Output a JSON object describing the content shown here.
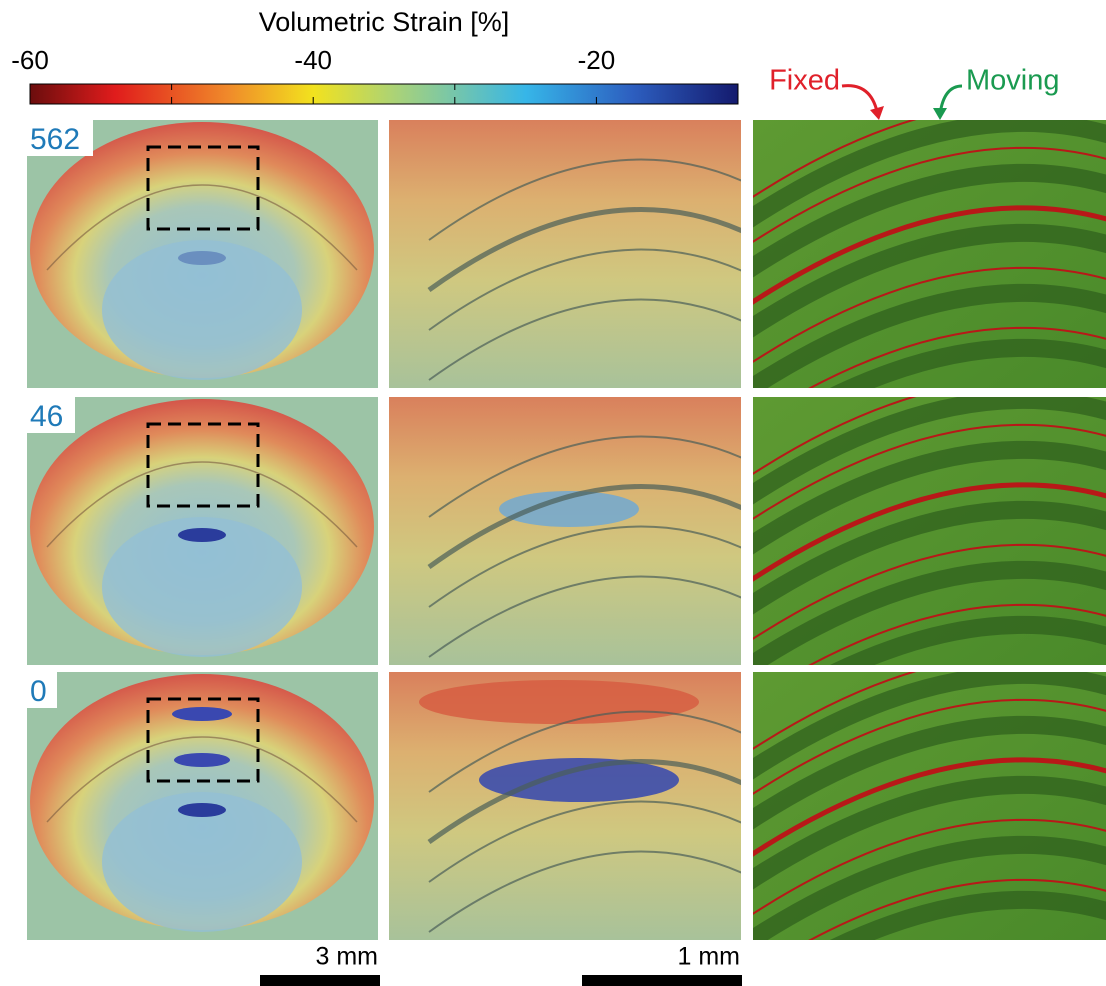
{
  "colorbar": {
    "title": "Volumetric Strain [%]",
    "lim": [
      -60,
      -10
    ],
    "ticks": [
      -60,
      -40,
      -20
    ],
    "minor_ticks": [
      -50,
      -30
    ]
  },
  "rows": [
    {
      "label": "562"
    },
    {
      "label": "46"
    },
    {
      "label": "0"
    }
  ],
  "scale_bars": [
    "3 mm",
    "1 mm"
  ],
  "annotations": {
    "fixed": "Fixed",
    "moving": "Moving"
  }
}
